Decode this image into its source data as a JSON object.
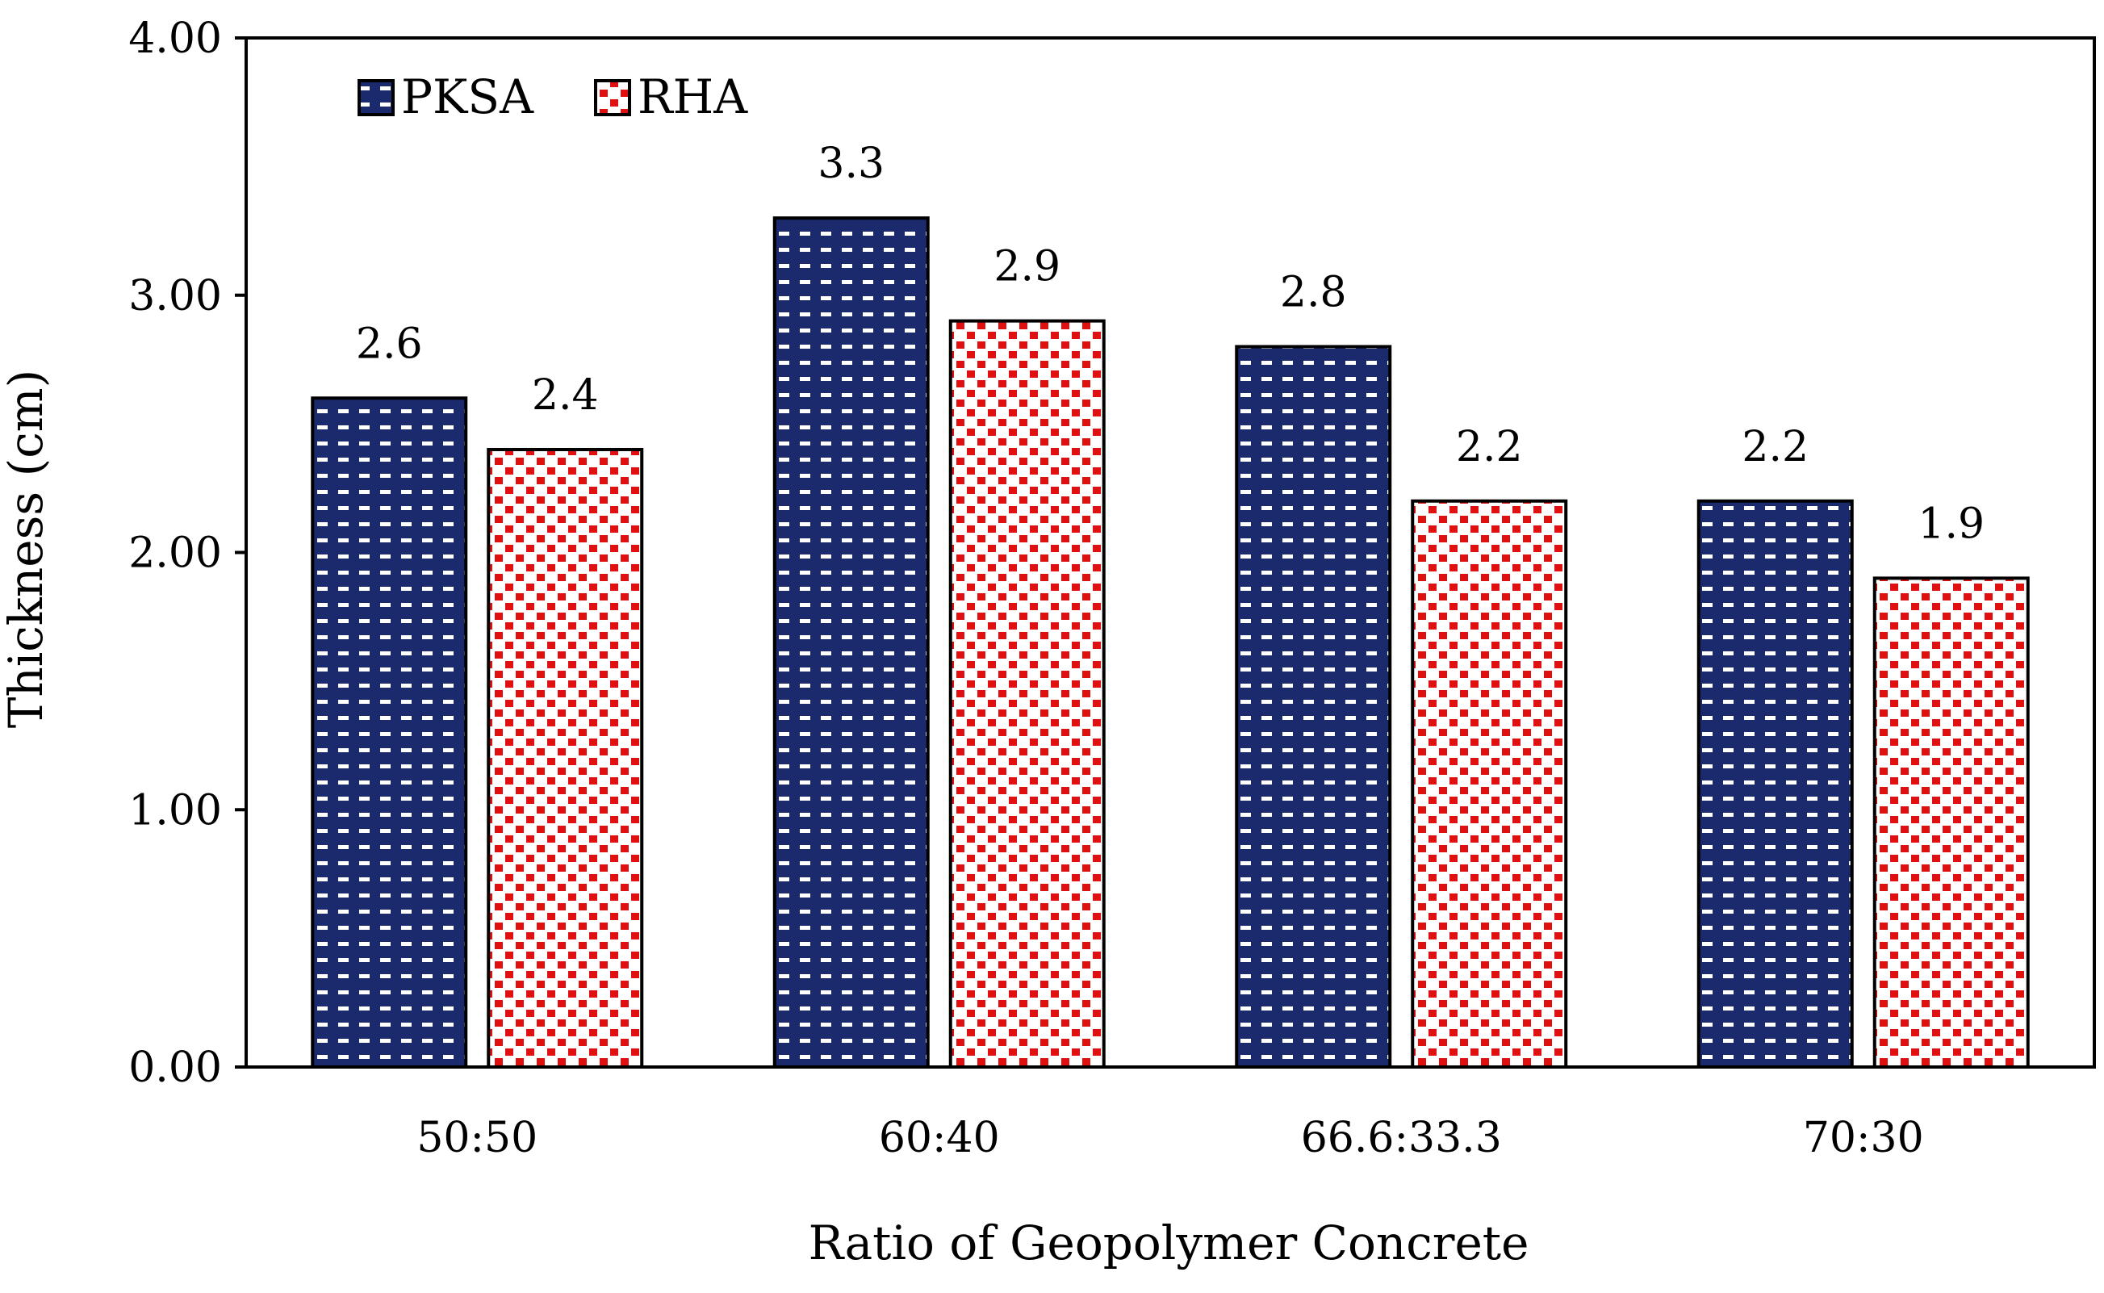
{
  "chart_data": {
    "type": "bar",
    "title": "",
    "xlabel": "Ratio of Geopolymer Concrete",
    "ylabel": "Thickness (cm)",
    "ylim": [
      0,
      4
    ],
    "yticks": [
      0,
      1,
      2,
      3,
      4
    ],
    "ytick_labels": [
      "0.00",
      "1.00",
      "2.00",
      "3.00",
      "4.00"
    ],
    "categories": [
      "50:50",
      "60:40",
      "66.6:33.3",
      "70:30"
    ],
    "series": [
      {
        "name": "PKSA",
        "values": [
          2.6,
          3.3,
          2.8,
          2.2
        ],
        "labels": [
          "2.6",
          "3.3",
          "2.8",
          "2.2"
        ],
        "color": "#1a2a6c",
        "pattern_color": "#ffffff"
      },
      {
        "name": "RHA",
        "values": [
          2.4,
          2.9,
          2.2,
          1.9
        ],
        "labels": [
          "2.4",
          "2.9",
          "2.2",
          "1.9"
        ],
        "color": "#ffffff",
        "pattern_color": "#e01010"
      }
    ],
    "legend_position": "top-left",
    "grid": false
  }
}
